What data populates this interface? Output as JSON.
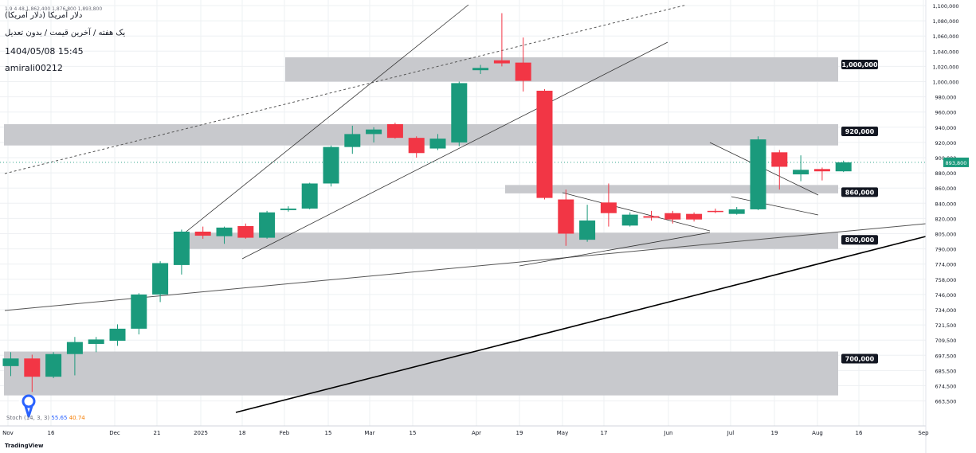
{
  "header": {
    "top_line": "1.9 4 48 1,862,400 1,876,800 1,893,800",
    "title": "دلار آمریکا (دلار آمریکا)",
    "subtitle": "یک هفته / آخرین قیمت / بدون تعدیل",
    "date": "1404/05/08 15:45",
    "author": "amirali00212"
  },
  "indicator": {
    "label": "Stoch (14, 3, 3)",
    "k": "55.65",
    "d": "40.74"
  },
  "brand": "TradingView",
  "colors": {
    "up": "#1a9a7c",
    "down": "#f23645",
    "zone": "#c5c6ca",
    "grid": "#eef0f3"
  },
  "chart_data": {
    "type": "candlestick",
    "price_axis_ticks": [
      "1,100,000",
      "1,080,000",
      "1,060,000",
      "1,040,000",
      "1,020,000",
      "1,000,000",
      "980,000",
      "960,000",
      "940,000",
      "920,000",
      "900,000",
      "880,000",
      "860,000",
      "840,000",
      "820,000",
      "805,000",
      "790,000",
      "774,000",
      "758,000",
      "746,000",
      "734,000",
      "721,500",
      "709,500",
      "697,500",
      "685,500",
      "674,500",
      "663,500"
    ],
    "time_axis_labels": [
      "Nov",
      "16",
      "Dec",
      "21",
      "2025",
      "18",
      "Feb",
      "15",
      "Mar",
      "15",
      "Apr",
      "19",
      "May",
      "17",
      "Jun",
      "Jul",
      "19",
      "Aug",
      "16",
      "Sep"
    ],
    "last_price": "893,800",
    "zones": [
      {
        "label": "1,000,000",
        "top": 1032000,
        "bottom": 1000000
      },
      {
        "label": "920,000",
        "top": 944000,
        "bottom": 916000
      },
      {
        "label": "860,000",
        "top": 864000,
        "bottom": 853000
      },
      {
        "label": "800,000",
        "top": 806000,
        "bottom": 790000
      },
      {
        "label": "700,000",
        "top": 700500,
        "bottom": 667500
      }
    ],
    "candles": [
      {
        "o": 689000,
        "h": 700000,
        "l": 681500,
        "c": 695000
      },
      {
        "o": 695000,
        "h": 698000,
        "l": 670000,
        "c": 681000
      },
      {
        "o": 681000,
        "h": 700000,
        "l": 680000,
        "c": 698500
      },
      {
        "o": 698500,
        "h": 712000,
        "l": 682000,
        "c": 708000
      },
      {
        "o": 706500,
        "h": 712000,
        "l": 700000,
        "c": 710000
      },
      {
        "o": 709000,
        "h": 722000,
        "l": 705000,
        "c": 718500
      },
      {
        "o": 718500,
        "h": 747000,
        "l": 714000,
        "c": 746000
      },
      {
        "o": 746000,
        "h": 777000,
        "l": 740000,
        "c": 775000
      },
      {
        "o": 773000,
        "h": 809000,
        "l": 763000,
        "c": 807000
      },
      {
        "o": 807000,
        "h": 812000,
        "l": 800000,
        "c": 803000
      },
      {
        "o": 802500,
        "h": 812000,
        "l": 795000,
        "c": 811000
      },
      {
        "o": 812500,
        "h": 815000,
        "l": 800000,
        "c": 801000
      },
      {
        "o": 801000,
        "h": 830000,
        "l": 800000,
        "c": 828000
      },
      {
        "o": 831000,
        "h": 836000,
        "l": 829000,
        "c": 833000
      },
      {
        "o": 833000,
        "h": 867000,
        "l": 832000,
        "c": 866000
      },
      {
        "o": 866000,
        "h": 916000,
        "l": 862000,
        "c": 914000
      },
      {
        "o": 914000,
        "h": 942000,
        "l": 905000,
        "c": 931000
      },
      {
        "o": 931000,
        "h": 940000,
        "l": 920000,
        "c": 937000
      },
      {
        "o": 944000,
        "h": 946000,
        "l": 925000,
        "c": 926000
      },
      {
        "o": 926000,
        "h": 928000,
        "l": 900000,
        "c": 906000
      },
      {
        "o": 912000,
        "h": 931000,
        "l": 910000,
        "c": 925000
      },
      {
        "o": 920000,
        "h": 1000000,
        "l": 915000,
        "c": 998000
      },
      {
        "o": 1015000,
        "h": 1022000,
        "l": 1010000,
        "c": 1018000
      },
      {
        "o": 1028000,
        "h": 1090000,
        "l": 1020000,
        "c": 1024000
      },
      {
        "o": 1025000,
        "h": 1058000,
        "l": 987000,
        "c": 1001000
      },
      {
        "o": 988000,
        "h": 990000,
        "l": 845000,
        "c": 847000
      },
      {
        "o": 845000,
        "h": 858000,
        "l": 793000,
        "c": 805000
      },
      {
        "o": 799000,
        "h": 838000,
        "l": 797000,
        "c": 818000
      },
      {
        "o": 841000,
        "h": 866000,
        "l": 812000,
        "c": 827000
      },
      {
        "o": 813000,
        "h": 828000,
        "l": 812000,
        "c": 825000
      },
      {
        "o": 823000,
        "h": 830000,
        "l": 818000,
        "c": 821000
      },
      {
        "o": 827000,
        "h": 830000,
        "l": 815000,
        "c": 819000
      },
      {
        "o": 826000,
        "h": 828000,
        "l": 817000,
        "c": 819000
      },
      {
        "o": 830000,
        "h": 833000,
        "l": 827000,
        "c": 829000
      },
      {
        "o": 826000,
        "h": 835000,
        "l": 825000,
        "c": 832000
      },
      {
        "o": 832000,
        "h": 928000,
        "l": 831000,
        "c": 924000
      },
      {
        "o": 907000,
        "h": 910000,
        "l": 858000,
        "c": 888000
      },
      {
        "o": 878000,
        "h": 903000,
        "l": 869000,
        "c": 884000
      },
      {
        "o": 885000,
        "h": 887000,
        "l": 870000,
        "c": 882000
      },
      {
        "o": 882000,
        "h": 896000,
        "l": 881000,
        "c": 893800
      }
    ]
  }
}
